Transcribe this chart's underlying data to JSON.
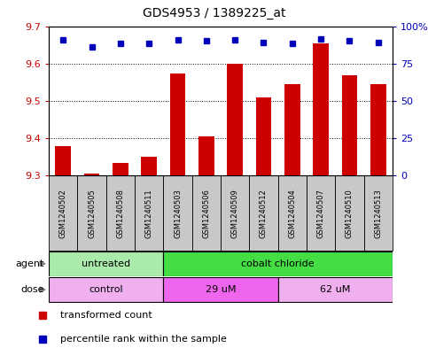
{
  "title": "GDS4953 / 1389225_at",
  "samples": [
    "GSM1240502",
    "GSM1240505",
    "GSM1240508",
    "GSM1240511",
    "GSM1240503",
    "GSM1240506",
    "GSM1240509",
    "GSM1240512",
    "GSM1240504",
    "GSM1240507",
    "GSM1240510",
    "GSM1240513"
  ],
  "bar_values": [
    9.38,
    9.305,
    9.335,
    9.35,
    9.575,
    9.405,
    9.6,
    9.51,
    9.545,
    9.655,
    9.57,
    9.545
  ],
  "bar_base": 9.3,
  "percentile_values": [
    9.665,
    9.645,
    9.655,
    9.655,
    9.663,
    9.662,
    9.663,
    9.657,
    9.655,
    9.667,
    9.662,
    9.657
  ],
  "ylim": [
    9.3,
    9.7
  ],
  "yticks_left": [
    9.3,
    9.4,
    9.5,
    9.6,
    9.7
  ],
  "yticks_right_labels": [
    "0",
    "25",
    "50",
    "75",
    "100%"
  ],
  "yticks_right_vals": [
    0,
    25,
    50,
    75,
    100
  ],
  "agent_groups": [
    {
      "label": "untreated",
      "start": 0,
      "end": 4,
      "color": "#AAEAAA"
    },
    {
      "label": "cobalt chloride",
      "start": 4,
      "end": 12,
      "color": "#44DD44"
    }
  ],
  "dose_groups": [
    {
      "label": "control",
      "start": 0,
      "end": 4,
      "color": "#F0B0F0"
    },
    {
      "label": "29 uM",
      "start": 4,
      "end": 8,
      "color": "#EE66EE"
    },
    {
      "label": "62 uM",
      "start": 8,
      "end": 12,
      "color": "#F0B0F0"
    }
  ],
  "bar_color": "#CC0000",
  "dot_color": "#0000BB",
  "tick_label_color": "#CC0000",
  "right_tick_color": "#0000BB",
  "label_box_color": "#C8C8C8",
  "agent_label": "agent",
  "dose_label": "dose",
  "legend_bar_label": "transformed count",
  "legend_dot_label": "percentile rank within the sample",
  "bar_width": 0.55
}
